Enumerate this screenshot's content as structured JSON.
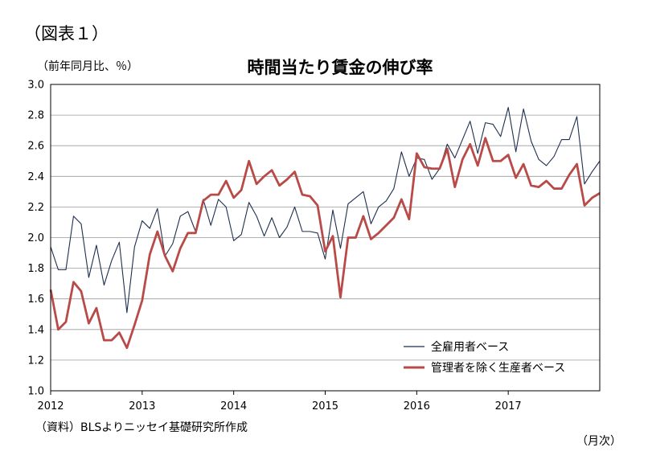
{
  "figure_label": "（図表１）",
  "unit_label": "（前年同月比、％）",
  "source_note": "（資料）BLSよりニッセイ基礎研究所作成",
  "x_unit": "（月次）",
  "chart_data": {
    "type": "line",
    "title": "時間当たり賃金の伸び率",
    "xlabel": "",
    "ylabel": "",
    "ylim": [
      1.0,
      3.0
    ],
    "yticks": [
      "1.0",
      "1.2",
      "1.4",
      "1.6",
      "1.8",
      "2.0",
      "2.2",
      "2.4",
      "2.6",
      "2.8",
      "3.0"
    ],
    "xticks": [
      "2012",
      "2013",
      "2014",
      "2015",
      "2016",
      "2017"
    ],
    "x_start": "2012-01",
    "grid": true,
    "legend_position": "bottom-right",
    "series": [
      {
        "name": "全雇用者ベース",
        "color": "#1f2f4f",
        "values": [
          1.94,
          1.79,
          1.79,
          2.14,
          2.09,
          1.74,
          1.95,
          1.69,
          1.85,
          1.97,
          1.51,
          1.94,
          2.11,
          2.06,
          2.19,
          1.88,
          1.96,
          2.14,
          2.17,
          2.04,
          2.25,
          2.08,
          2.25,
          2.2,
          1.98,
          2.02,
          2.23,
          2.14,
          2.01,
          2.13,
          2.0,
          2.07,
          2.2,
          2.04,
          2.04,
          2.03,
          1.86,
          2.18,
          1.93,
          2.22,
          2.26,
          2.3,
          2.09,
          2.2,
          2.24,
          2.32,
          2.56,
          2.4,
          2.52,
          2.51,
          2.38,
          2.45,
          2.61,
          2.52,
          2.64,
          2.76,
          2.55,
          2.75,
          2.74,
          2.66,
          2.85,
          2.56,
          2.84,
          2.63,
          2.51,
          2.47,
          2.53,
          2.64,
          2.64,
          2.79,
          2.35,
          2.43,
          2.5
        ]
      },
      {
        "name": "管理者を除く生産者ベース",
        "color": "#b84a47",
        "values": [
          1.66,
          1.4,
          1.45,
          1.71,
          1.65,
          1.44,
          1.54,
          1.33,
          1.33,
          1.38,
          1.28,
          1.43,
          1.59,
          1.89,
          2.04,
          1.88,
          1.78,
          1.93,
          2.03,
          2.03,
          2.24,
          2.28,
          2.28,
          2.37,
          2.26,
          2.31,
          2.5,
          2.35,
          2.4,
          2.44,
          2.34,
          2.38,
          2.43,
          2.28,
          2.27,
          2.21,
          1.91,
          2.01,
          1.61,
          2.0,
          2.0,
          2.14,
          1.99,
          2.03,
          2.08,
          2.13,
          2.25,
          2.12,
          2.55,
          2.46,
          2.45,
          2.45,
          2.58,
          2.33,
          2.51,
          2.61,
          2.47,
          2.65,
          2.5,
          2.5,
          2.54,
          2.39,
          2.48,
          2.34,
          2.33,
          2.37,
          2.32,
          2.32,
          2.41,
          2.48,
          2.21,
          2.26,
          2.29
        ]
      }
    ]
  }
}
